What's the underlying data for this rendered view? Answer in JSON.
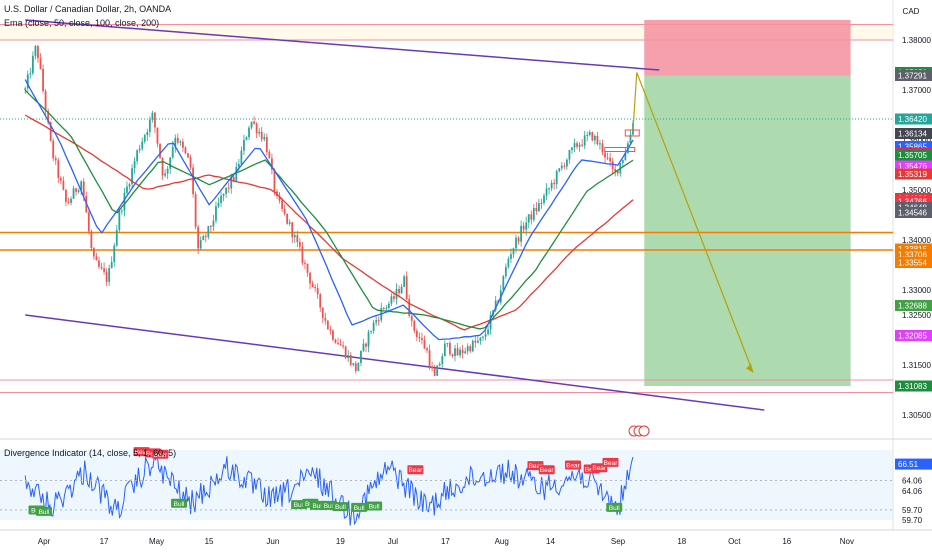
{
  "header": {
    "title": "U.S. Dollar / Canadian Dollar, 2h, OANDA",
    "ema_label": "Ema (close, 50, close, 100, close, 200)",
    "divergence_label": "Divergence Indicator (14, close, 5, 1, 60, 5)",
    "currency": "CAD"
  },
  "colors": {
    "up": "#26a69a",
    "down": "#ef5350",
    "ema50": "#2962ff",
    "ema100": "#1e8e3e",
    "ema200": "#e53935",
    "trendline": "#673ab7",
    "support": "#f57c00",
    "stop_zone": "#f48fa0",
    "target_zone": "#a5d6a7",
    "rsi_line": "#2962ff",
    "bull": "#43a047",
    "bear": "#f23645",
    "projection": "#b7a00b"
  },
  "chart_data": [
    {
      "type": "line",
      "title": "U.S. Dollar / Canadian Dollar, 2h, OANDA",
      "x_tick_labels": [
        "Apr",
        "17",
        "May",
        "15",
        "Jun",
        "19",
        "Jul",
        "17",
        "Aug",
        "14",
        "Sep",
        "18",
        "Oct",
        "16",
        "Nov"
      ],
      "y_tick_labels": [
        "1.38000",
        "1.37000",
        "1.36000",
        "1.35000",
        "1.34000",
        "1.33000",
        "1.32500",
        "1.31500",
        "1.30500"
      ],
      "ylim": [
        1.302,
        1.388
      ],
      "anchors": [
        {
          "x": "Mar 27",
          "y": 1.37
        },
        {
          "x": "Mar 30",
          "y": 1.379
        },
        {
          "x": "Apr 3",
          "y": 1.358
        },
        {
          "x": "Apr 7",
          "y": 1.347
        },
        {
          "x": "Apr 11",
          "y": 1.352
        },
        {
          "x": "Apr 14",
          "y": 1.336
        },
        {
          "x": "Apr 18",
          "y": 1.332
        },
        {
          "x": "Apr 21",
          "y": 1.345
        },
        {
          "x": "Apr 26",
          "y": 1.358
        },
        {
          "x": "Apr 30",
          "y": 1.365
        },
        {
          "x": "May 3",
          "y": 1.352
        },
        {
          "x": "May 6",
          "y": 1.361
        },
        {
          "x": "May 10",
          "y": 1.355
        },
        {
          "x": "May 12",
          "y": 1.338
        },
        {
          "x": "May 15",
          "y": 1.342
        },
        {
          "x": "May 18",
          "y": 1.348
        },
        {
          "x": "May 22",
          "y": 1.353
        },
        {
          "x": "May 26",
          "y": 1.364
        },
        {
          "x": "May 30",
          "y": 1.36
        },
        {
          "x": "Jun 2",
          "y": 1.348
        },
        {
          "x": "Jun 6",
          "y": 1.342
        },
        {
          "x": "Jun 9",
          "y": 1.336
        },
        {
          "x": "Jun 13",
          "y": 1.328
        },
        {
          "x": "Jun 16",
          "y": 1.322
        },
        {
          "x": "Jun 20",
          "y": 1.318
        },
        {
          "x": "Jun 23",
          "y": 1.314
        },
        {
          "x": "Jun 27",
          "y": 1.322
        },
        {
          "x": "Jun 30",
          "y": 1.326
        },
        {
          "x": "Jul 3",
          "y": 1.328
        },
        {
          "x": "Jul 6",
          "y": 1.332
        },
        {
          "x": "Jul 8",
          "y": 1.323
        },
        {
          "x": "Jul 12",
          "y": 1.318
        },
        {
          "x": "Jul 14",
          "y": 1.312
        },
        {
          "x": "Jul 17",
          "y": 1.319
        },
        {
          "x": "Jul 20",
          "y": 1.317
        },
        {
          "x": "Jul 24",
          "y": 1.319
        },
        {
          "x": "Jul 27",
          "y": 1.32
        },
        {
          "x": "Jul 31",
          "y": 1.328
        },
        {
          "x": "Aug 3",
          "y": 1.337
        },
        {
          "x": "Aug 7",
          "y": 1.343
        },
        {
          "x": "Aug 11",
          "y": 1.347
        },
        {
          "x": "Aug 15",
          "y": 1.352
        },
        {
          "x": "Aug 18",
          "y": 1.356
        },
        {
          "x": "Aug 21",
          "y": 1.359
        },
        {
          "x": "Aug 25",
          "y": 1.361
        },
        {
          "x": "Aug 28",
          "y": 1.358
        },
        {
          "x": "Aug 31",
          "y": 1.353
        },
        {
          "x": "Sep 2",
          "y": 1.356
        },
        {
          "x": "Sep 4",
          "y": 1.36
        },
        {
          "x": "Sep 5",
          "y": 1.364
        }
      ],
      "ema_50": [
        {
          "x": "Mar 27",
          "y": 1.372
        },
        {
          "x": "Apr 5",
          "y": 1.36
        },
        {
          "x": "Apr 16",
          "y": 1.341
        },
        {
          "x": "Apr 26",
          "y": 1.352
        },
        {
          "x": "May 5",
          "y": 1.36
        },
        {
          "x": "May 15",
          "y": 1.347
        },
        {
          "x": "May 28",
          "y": 1.359
        },
        {
          "x": "Jun 10",
          "y": 1.344
        },
        {
          "x": "Jun 22",
          "y": 1.323
        },
        {
          "x": "Jul 6",
          "y": 1.327
        },
        {
          "x": "Jul 15",
          "y": 1.32
        },
        {
          "x": "Jul 27",
          "y": 1.321
        },
        {
          "x": "Aug 8",
          "y": 1.34
        },
        {
          "x": "Aug 22",
          "y": 1.356
        },
        {
          "x": "Sep 1",
          "y": 1.355
        },
        {
          "x": "Sep 5",
          "y": 1.36
        }
      ],
      "ema_100": [
        {
          "x": "Mar 27",
          "y": 1.37
        },
        {
          "x": "Apr 8",
          "y": 1.361
        },
        {
          "x": "Apr 20",
          "y": 1.345
        },
        {
          "x": "May 2",
          "y": 1.356
        },
        {
          "x": "May 15",
          "y": 1.351
        },
        {
          "x": "May 30",
          "y": 1.356
        },
        {
          "x": "Jun 15",
          "y": 1.342
        },
        {
          "x": "Jun 28",
          "y": 1.326
        },
        {
          "x": "Jul 12",
          "y": 1.325
        },
        {
          "x": "Jul 27",
          "y": 1.322
        },
        {
          "x": "Aug 10",
          "y": 1.334
        },
        {
          "x": "Aug 24",
          "y": 1.35
        },
        {
          "x": "Sep 5",
          "y": 1.356
        }
      ],
      "ema_200": [
        {
          "x": "Mar 27",
          "y": 1.365
        },
        {
          "x": "Apr 12",
          "y": 1.358
        },
        {
          "x": "Apr 28",
          "y": 1.35
        },
        {
          "x": "May 15",
          "y": 1.353
        },
        {
          "x": "Jun 1",
          "y": 1.35
        },
        {
          "x": "Jun 20",
          "y": 1.336
        },
        {
          "x": "Jul 8",
          "y": 1.327
        },
        {
          "x": "Jul 22",
          "y": 1.322
        },
        {
          "x": "Aug 5",
          "y": 1.326
        },
        {
          "x": "Aug 20",
          "y": 1.338
        },
        {
          "x": "Sep 5",
          "y": 1.348
        }
      ],
      "horizontal_levels": [
        1.3831,
        1.38,
        1.3415,
        1.338,
        1.312,
        1.3095
      ],
      "trendlines": [
        {
          "from": {
            "x": "Mar 27",
            "y": 1.384
          },
          "to": {
            "x": "Sep 12",
            "y": 1.374
          }
        },
        {
          "from": {
            "x": "Mar 27",
            "y": 1.325
          },
          "to": {
            "x": "Oct 10",
            "y": 1.306
          }
        }
      ],
      "position": {
        "start": "Sep 8",
        "end": "Nov 2",
        "entry": 1.3729,
        "stop": 1.384,
        "target": 1.3108
      },
      "projection": [
        {
          "x": "Sep 5",
          "y": 1.362
        },
        {
          "x": "Sep 6",
          "y": 1.3735
        },
        {
          "x": "Oct 7",
          "y": 1.3135
        }
      ],
      "price_tags": [
        {
          "value": "1.37350",
          "y": 1.3735,
          "color": "#1e8e3e"
        },
        {
          "value": "1.37291",
          "y": 1.3729,
          "color": "#5d606b"
        },
        {
          "value": "1.36420",
          "y": 1.3642,
          "color": "#26a69a"
        },
        {
          "value": "1.36134",
          "y": 1.3613,
          "color": "#434651"
        },
        {
          "value": "1.35865",
          "y": 1.3587,
          "color": "#2962ff"
        },
        {
          "value": "1.35743",
          "y": 1.3574,
          "color": "#e91e63"
        },
        {
          "value": "1.35705",
          "y": 1.357,
          "color": "#1e8e3e"
        },
        {
          "value": "1.35476",
          "y": 1.3548,
          "color": "#e040fb"
        },
        {
          "value": "1.35319",
          "y": 1.3532,
          "color": "#e53935"
        },
        {
          "value": "1.34826",
          "y": 1.3483,
          "color": "#e53935"
        },
        {
          "value": "1.34766",
          "y": 1.3477,
          "color": "#f23645"
        },
        {
          "value": "1.34648",
          "y": 1.3465,
          "color": "#5d606b"
        },
        {
          "value": "1.34546",
          "y": 1.3455,
          "color": "#5d606b"
        },
        {
          "value": "1.33815",
          "y": 1.3382,
          "color": "#f57c00"
        },
        {
          "value": "1.33706",
          "y": 1.3371,
          "color": "#f57c00"
        },
        {
          "value": "1.33554",
          "y": 1.3355,
          "color": "#f57c00"
        },
        {
          "value": "1.32688",
          "y": 1.3269,
          "color": "#43a047"
        },
        {
          "value": "1.32085",
          "y": 1.3209,
          "color": "#e040fb"
        },
        {
          "value": "1.31083",
          "y": 1.3108,
          "color": "#1e8e3e"
        }
      ]
    },
    {
      "type": "line",
      "title": "Divergence Indicator (14, close, 5, 1, 60, 5)",
      "y_tick_labels": [
        "64.06",
        "64.06",
        "59.70",
        "59.70"
      ],
      "current_value": "66.51",
      "ylim": [
        57,
        69.5
      ],
      "anchors": [
        {
          "x": "Mar 27",
          "y": 64.0
        },
        {
          "x": "Apr 3",
          "y": 60.0
        },
        {
          "x": "Apr 12",
          "y": 65.5
        },
        {
          "x": "Apr 20",
          "y": 59.5
        },
        {
          "x": "Apr 30",
          "y": 67.0
        },
        {
          "x": "May 10",
          "y": 60.5
        },
        {
          "x": "May 20",
          "y": 66.0
        },
        {
          "x": "Jun 1",
          "y": 61.0
        },
        {
          "x": "Jun 12",
          "y": 65.0
        },
        {
          "x": "Jun 22",
          "y": 59.0
        },
        {
          "x": "Jul 2",
          "y": 66.0
        },
        {
          "x": "Jul 12",
          "y": 60.0
        },
        {
          "x": "Jul 22",
          "y": 64.0
        },
        {
          "x": "Aug 2",
          "y": 65.5
        },
        {
          "x": "Aug 12",
          "y": 63.0
        },
        {
          "x": "Aug 22",
          "y": 65.0
        },
        {
          "x": "Sep 1",
          "y": 60.0
        },
        {
          "x": "Sep 5",
          "y": 66.5
        }
      ],
      "bull_markers": [
        {
          "x": "Mar 30",
          "y": 59.6
        },
        {
          "x": "Apr 1",
          "y": 59.4
        },
        {
          "x": "May 7",
          "y": 60.6
        },
        {
          "x": "Jun 8",
          "y": 60.4
        },
        {
          "x": "Jun 11",
          "y": 60.6
        },
        {
          "x": "Jun 13",
          "y": 60.3
        },
        {
          "x": "Jun 16",
          "y": 60.3
        },
        {
          "x": "Jun 19",
          "y": 60.1
        },
        {
          "x": "Jun 24",
          "y": 60.0
        },
        {
          "x": "Jun 28",
          "y": 60.2
        },
        {
          "x": "Aug 31",
          "y": 60.0
        }
      ],
      "bear_markers": [
        {
          "x": "Apr 27",
          "y": 68.3
        },
        {
          "x": "Apr 30",
          "y": 68.1
        },
        {
          "x": "May 2",
          "y": 67.9
        },
        {
          "x": "Jul 9",
          "y": 65.6
        },
        {
          "x": "Aug 10",
          "y": 66.2
        },
        {
          "x": "Aug 13",
          "y": 65.6
        },
        {
          "x": "Aug 20",
          "y": 66.3
        },
        {
          "x": "Aug 25",
          "y": 65.7
        },
        {
          "x": "Aug 27",
          "y": 65.9
        },
        {
          "x": "Aug 30",
          "y": 66.7
        }
      ],
      "bull_label": "Bull",
      "bear_label": "Bear"
    }
  ]
}
